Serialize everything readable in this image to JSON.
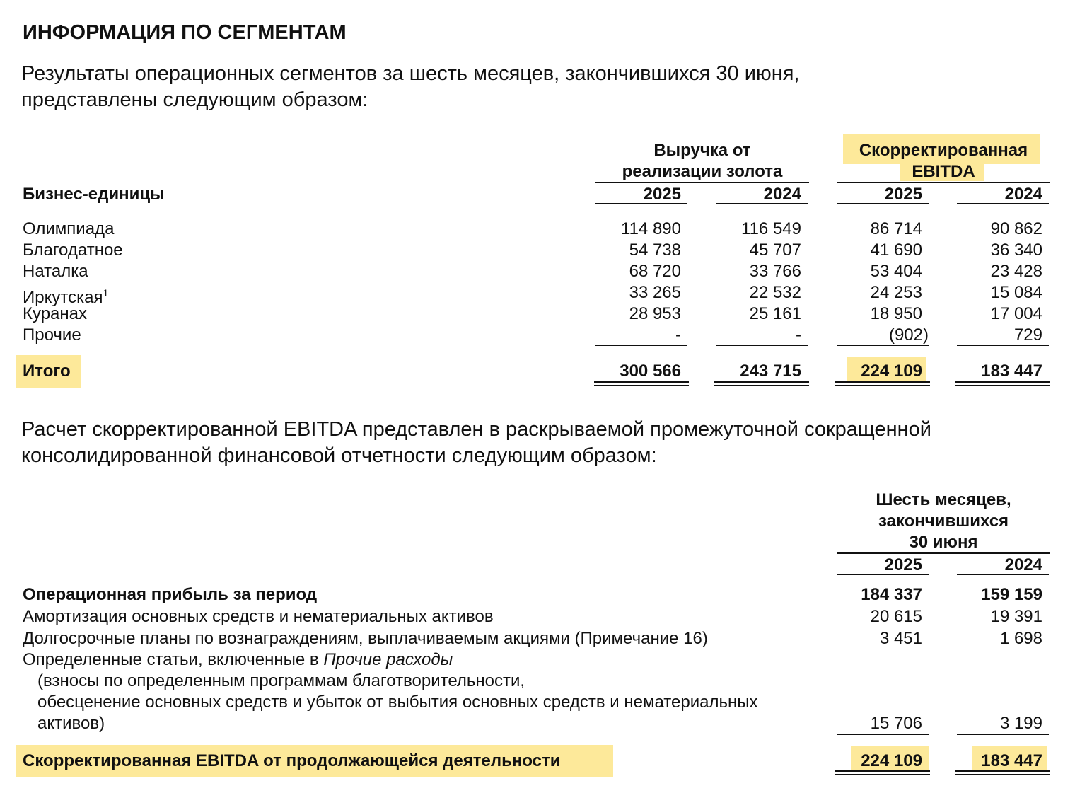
{
  "title": "ИНФОРМАЦИЯ ПО СЕГМЕНТАМ",
  "intro1": [
    "Результаты операционных сегментов за шесть месяцев, закончившихся 30 июня,",
    "представлены следующим образом:"
  ],
  "table1": {
    "group1_header": [
      "Выручка от",
      "реализации золота"
    ],
    "group2_header": [
      "Скорректированная",
      "EBITDA"
    ],
    "row_header": "Бизнес-единицы",
    "years": [
      "2025",
      "2024",
      "2025",
      "2024"
    ],
    "rows": [
      {
        "label": "Олимпиада",
        "sup": "",
        "values": [
          "114 890",
          "116 549",
          "86 714",
          "90 862"
        ]
      },
      {
        "label": "Благодатное",
        "sup": "",
        "values": [
          "54 738",
          "45 707",
          "41 690",
          "36 340"
        ]
      },
      {
        "label": "Наталка",
        "sup": "",
        "values": [
          "68 720",
          "33 766",
          "53 404",
          "23 428"
        ]
      },
      {
        "label": "Иркутская",
        "sup": "1",
        "values": [
          "33 265",
          "22 532",
          "24 253",
          "15 084"
        ]
      },
      {
        "label": "Куранах",
        "sup": "",
        "values": [
          "28 953",
          "25 161",
          "18 950",
          "17 004"
        ]
      },
      {
        "label": "Прочие",
        "sup": "",
        "values": [
          "-",
          "-",
          "(902)",
          "729"
        ]
      }
    ],
    "total": {
      "label": "Итого",
      "values": [
        "300 566",
        "243 715",
        "224 109",
        "183 447"
      ]
    }
  },
  "intro2": [
    "Расчет скорректированной EBITDA представлен в раскрываемой промежуточной сокращенной",
    "консолидированной финансовой отчетности следующим образом:"
  ],
  "table2": {
    "header": [
      "Шесть месяцев,",
      "закончившихся",
      "30 июня"
    ],
    "years": [
      "2025",
      "2024"
    ],
    "rows": [
      {
        "label": "Операционная прибыль за период",
        "values": [
          "184 337",
          "159 159"
        ]
      },
      {
        "label": "Амортизация основных средств и нематериальных активов",
        "values": [
          "20 615",
          "19 391"
        ]
      },
      {
        "label": "Долгосрочные планы по вознаграждениям, выплачиваемым акциями (Примечание 16)",
        "values": [
          "3 451",
          "1 698"
        ]
      }
    ],
    "multi_row": {
      "label_prefix": "Определенные статьи, включенные в ",
      "label_italic": "Прочие расходы",
      "lines": [
        "(взносы по определенным программам благотворительности,",
        "обесценение основных средств и убыток от выбытия основных средств и нематериальных",
        "активов)"
      ],
      "values": [
        "15 706",
        "3 199"
      ]
    },
    "total": {
      "label": "Скорректированная EBITDA от продолжающейся деятельности",
      "values": [
        "224 109",
        "183 447"
      ]
    }
  },
  "colors": {
    "highlight": "#fde99a"
  }
}
